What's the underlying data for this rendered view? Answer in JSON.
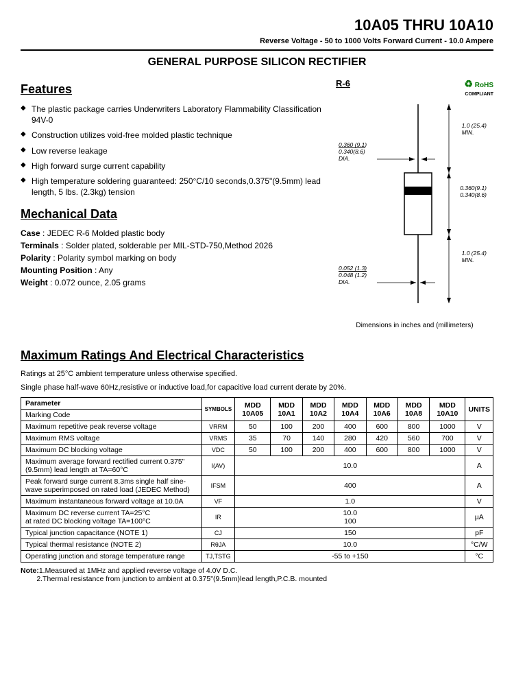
{
  "header": {
    "title": "10A05 THRU 10A10",
    "sub": "Reverse Voltage - 50 to 1000 Volts    Forward Current - 10.0 Ampere"
  },
  "subtitle": "GENERAL PURPOSE SILICON RECTIFIER",
  "features": {
    "heading": "Features",
    "items": [
      "The plastic package carries Underwriters Laboratory Flammability Classification 94V-0",
      "Construction utilizes void-free molded plastic technique",
      "Low reverse leakage",
      "High forward surge current capability",
      "High temperature soldering guaranteed: 250°C/10 seconds,0.375\"(9.5mm) lead length, 5 lbs. (2.3kg) tension"
    ]
  },
  "mech": {
    "heading": "Mechanical Data",
    "case_lbl": "Case",
    "case_val": ": JEDEC R-6 Molded plastic body",
    "term_lbl": "Terminals",
    "term_val": ": Solder plated, solderable per MIL-STD-750,Method 2026",
    "pol_lbl": "Polarity",
    "pol_val": ": Polarity symbol  marking on body",
    "mount_lbl": "Mounting Position",
    "mount_val": ": Any",
    "weight_lbl": "Weight",
    "weight_val": ": 0.072 ounce, 2.05 grams"
  },
  "diagram": {
    "pkg": "R-6",
    "rohs": "RoHS",
    "rohs_sub": "COMPLIANT",
    "lead_dia_top": "0.360 (9.1)",
    "lead_dia_bot": "0.340(8.6)",
    "dia_lbl": "DIA.",
    "lead_len": "1.0 (25.4)",
    "min_lbl": "MIN.",
    "body_top": "0.360(9.1)",
    "body_bot": "0.340(8.6)",
    "wire_top": "0.052 (1.3)",
    "wire_bot": "0.048 (1.2)",
    "caption": "Dimensions in inches and (millimeters)"
  },
  "ratings": {
    "heading": "Maximum Ratings And Electrical Characteristics",
    "note1": "Ratings at 25°C ambient temperature unless otherwise specified.",
    "note2": "Single phase half-wave 60Hz,resistive or inductive load,for capacitive load current derate by 20%.",
    "columns": {
      "param": "Parameter",
      "sym": "SYMBOLS",
      "units": "UNITS",
      "parts": [
        "MDD 10A05",
        "MDD 10A1",
        "MDD 10A2",
        "MDD 10A4",
        "MDD 10A6",
        "MDD 10A8",
        "MDD 10A10"
      ]
    },
    "marking": "Marking Code",
    "rows": [
      {
        "param": "Maximum repetitive peak reverse voltage",
        "sym": "VRRM",
        "vals": [
          "50",
          "100",
          "200",
          "400",
          "600",
          "800",
          "1000"
        ],
        "units": "V"
      },
      {
        "param": "Maximum RMS voltage",
        "sym": "VRMS",
        "vals": [
          "35",
          "70",
          "140",
          "280",
          "420",
          "560",
          "700"
        ],
        "units": "V"
      },
      {
        "param": "Maximum DC blocking voltage",
        "sym": "VDC",
        "vals": [
          "50",
          "100",
          "200",
          "400",
          "600",
          "800",
          "1000"
        ],
        "units": "V"
      },
      {
        "param": "Maximum average forward rectified current 0.375\"(9.5mm) lead length at TA=60°C",
        "sym": "I(AV)",
        "span": "10.0",
        "units": "A"
      },
      {
        "param": "Peak forward surge current 8.3ms single half sine-wave superimposed on rated load (JEDEC Method)",
        "sym": "IFSM",
        "span": "400",
        "units": "A"
      },
      {
        "param": "Maximum instantaneous forward voltage at 10.0A",
        "sym": "VF",
        "span": "1.0",
        "units": "V"
      },
      {
        "param": "Maximum DC reverse current      TA=25°C\nat rated DC blocking voltage       TA=100°C",
        "sym": "IR",
        "span": "10.0\n100",
        "units": "µA"
      },
      {
        "param": "Typical junction capacitance (NOTE 1)",
        "sym": "CJ",
        "span": "150",
        "units": "pF"
      },
      {
        "param": "Typical thermal resistance (NOTE 2)",
        "sym": "RθJA",
        "span": "10.0",
        "units": "°C/W"
      },
      {
        "param": "Operating junction and storage temperature range",
        "sym": "TJ,TSTG",
        "span": "-55 to +150",
        "units": "°C"
      }
    ]
  },
  "footnote": {
    "lbl": "Note:",
    "l1": "1.Measured at 1MHz and applied reverse voltage of 4.0V D.C.",
    "l2": "2.Thermal resistance from junction to ambient  at 0.375\"(9.5mm)lead length,P.C.B. mounted"
  },
  "style": {
    "colors": {
      "text": "#000000",
      "bg": "#ffffff",
      "rohs": "#0a7a0a"
    }
  }
}
